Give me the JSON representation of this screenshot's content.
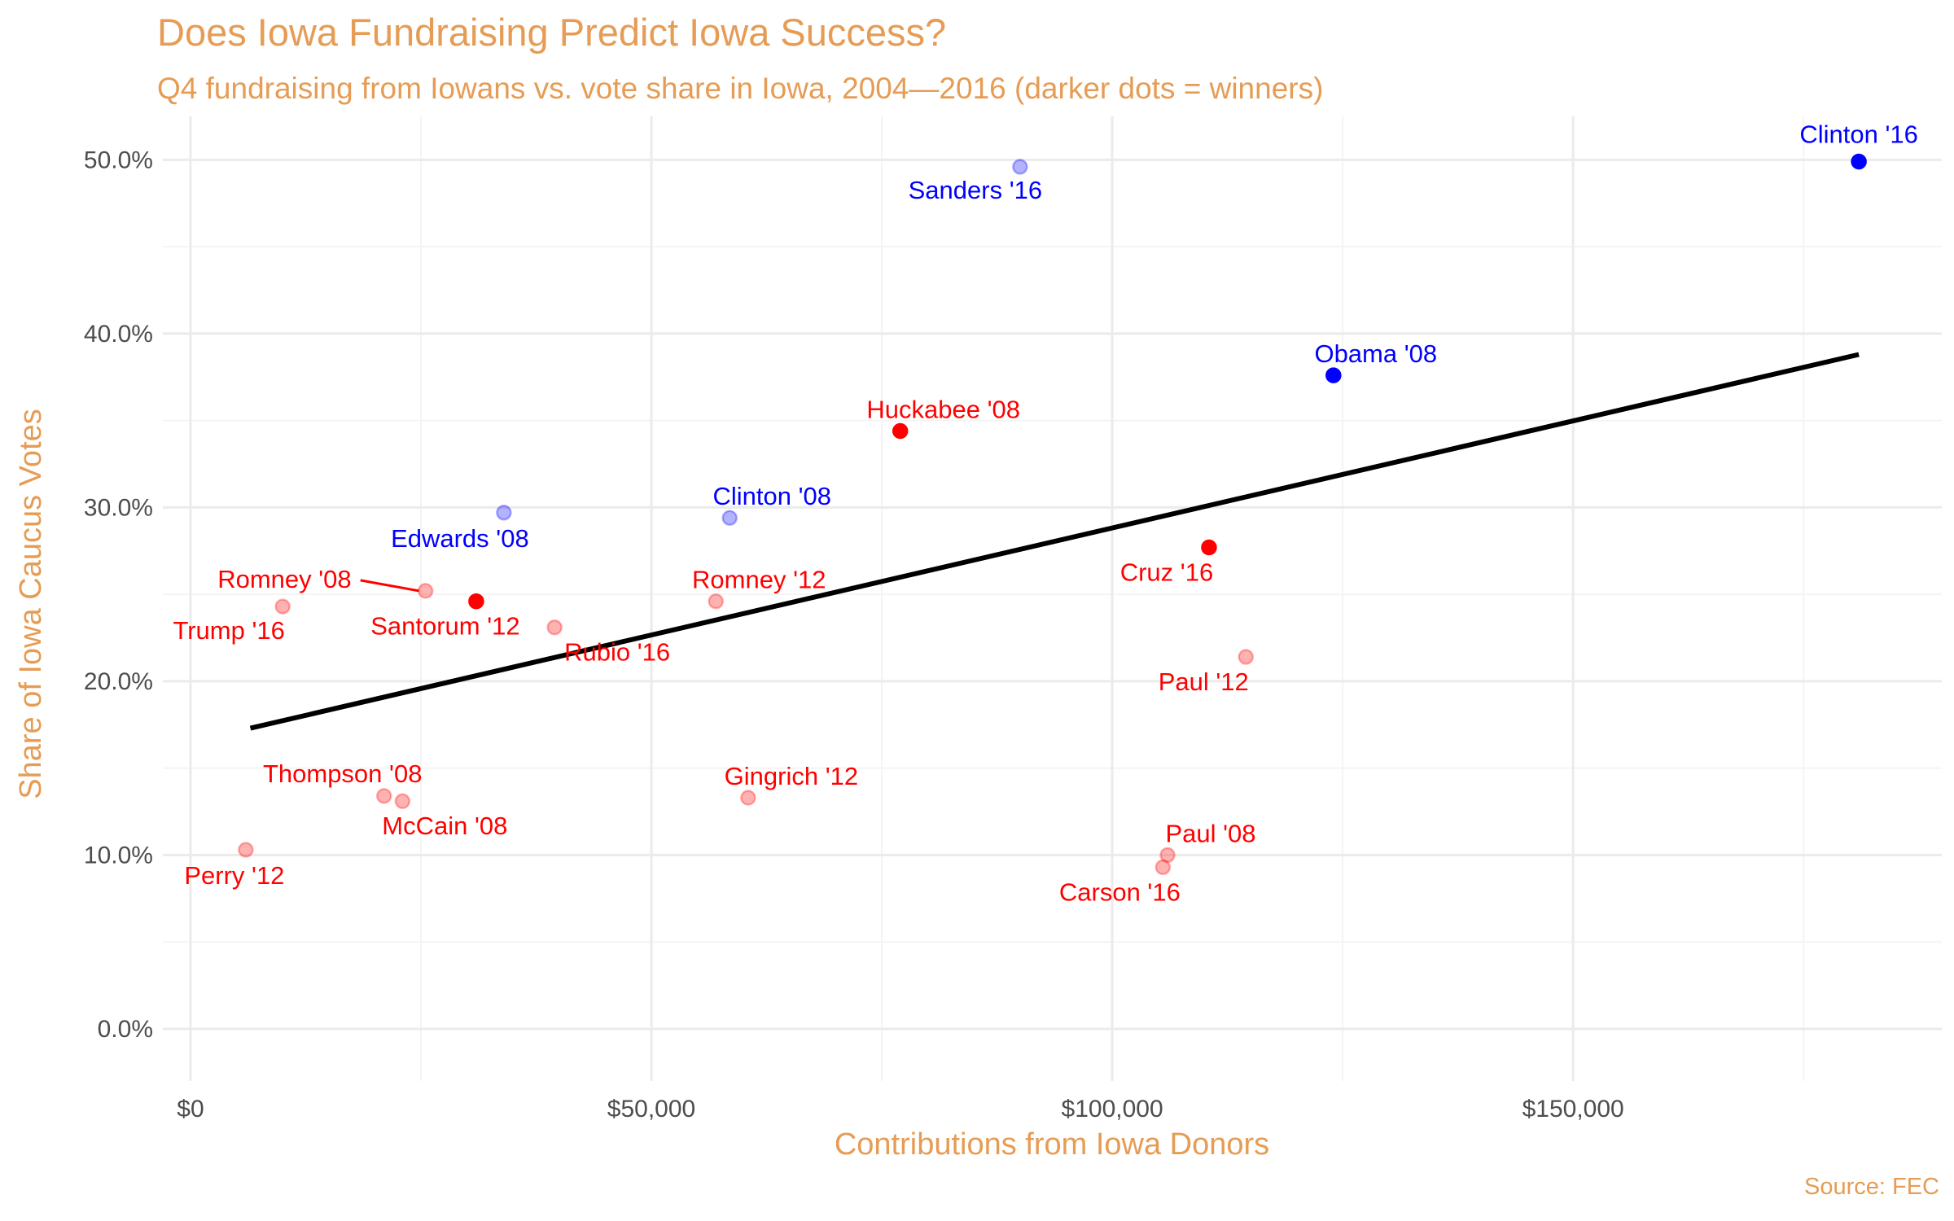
{
  "title": "Does Iowa Fundraising Predict Iowa Success?",
  "subtitle": "Q4 fundraising from Iowans vs. vote share in Iowa, 2004—2016 (darker dots = winners)",
  "caption": "Source: FEC",
  "colors": {
    "accent": "#E69C54",
    "democrat": "#0000FF",
    "republican": "#FF0000",
    "trend": "#000000",
    "grid": "#EBEBEB"
  },
  "chart_data": {
    "type": "scatter",
    "title": "Does Iowa Fundraising Predict Iowa Success?",
    "subtitle": "Q4 fundraising from Iowans vs. vote share in Iowa, 2004—2016 (darker dots = winners)",
    "xlabel": "Contributions from Iowa Donors",
    "ylabel": "Share of Iowa Caucus Votes",
    "xlim": [
      -3000,
      190000
    ],
    "ylim": [
      -3,
      52.5
    ],
    "x_ticks": [
      0,
      50000,
      100000,
      150000
    ],
    "x_tick_labels": [
      "$0",
      "$50,000",
      "$100,000",
      "$150,000"
    ],
    "y_ticks": [
      0,
      10,
      20,
      30,
      40,
      50
    ],
    "y_tick_labels": [
      "0.0%",
      "10.0%",
      "20.0%",
      "30.0%",
      "40.0%",
      "50.0%"
    ],
    "grid": true,
    "legend": "none",
    "trend_line": {
      "x": [
        6500,
        181000
      ],
      "y": [
        17.3,
        38.8
      ]
    },
    "points": [
      {
        "label": "Clinton '16",
        "x": 181000,
        "y": 49.9,
        "party": "D",
        "winner": true
      },
      {
        "label": "Sanders '16",
        "x": 90000,
        "y": 49.6,
        "party": "D",
        "winner": false
      },
      {
        "label": "Obama '08",
        "x": 124000,
        "y": 37.6,
        "party": "D",
        "winner": true
      },
      {
        "label": "Clinton '08",
        "x": 58500,
        "y": 29.4,
        "party": "D",
        "winner": false
      },
      {
        "label": "Edwards '08",
        "x": 34000,
        "y": 29.7,
        "party": "D",
        "winner": false
      },
      {
        "label": "Huckabee '08",
        "x": 77000,
        "y": 34.4,
        "party": "R",
        "winner": true
      },
      {
        "label": "Cruz '16",
        "x": 110500,
        "y": 27.7,
        "party": "R",
        "winner": true
      },
      {
        "label": "Santorum '12",
        "x": 31000,
        "y": 24.6,
        "party": "R",
        "winner": true
      },
      {
        "label": "Romney '08",
        "x": 25500,
        "y": 25.2,
        "party": "R",
        "winner": false
      },
      {
        "label": "Trump '16",
        "x": 10000,
        "y": 24.3,
        "party": "R",
        "winner": false
      },
      {
        "label": "Rubio '16",
        "x": 39500,
        "y": 23.1,
        "party": "R",
        "winner": false
      },
      {
        "label": "Romney '12",
        "x": 57000,
        "y": 24.6,
        "party": "R",
        "winner": false
      },
      {
        "label": "Paul '12",
        "x": 114500,
        "y": 21.4,
        "party": "R",
        "winner": false
      },
      {
        "label": "Thompson '08",
        "x": 21000,
        "y": 13.4,
        "party": "R",
        "winner": false
      },
      {
        "label": "McCain '08",
        "x": 23000,
        "y": 13.1,
        "party": "R",
        "winner": false
      },
      {
        "label": "Gingrich '12",
        "x": 60500,
        "y": 13.3,
        "party": "R",
        "winner": false
      },
      {
        "label": "Perry '12",
        "x": 6000,
        "y": 10.3,
        "party": "R",
        "winner": false
      },
      {
        "label": "Paul '08",
        "x": 106000,
        "y": 10.0,
        "party": "R",
        "winner": false
      },
      {
        "label": "Carson '16",
        "x": 105500,
        "y": 9.3,
        "party": "R",
        "winner": false
      }
    ]
  }
}
